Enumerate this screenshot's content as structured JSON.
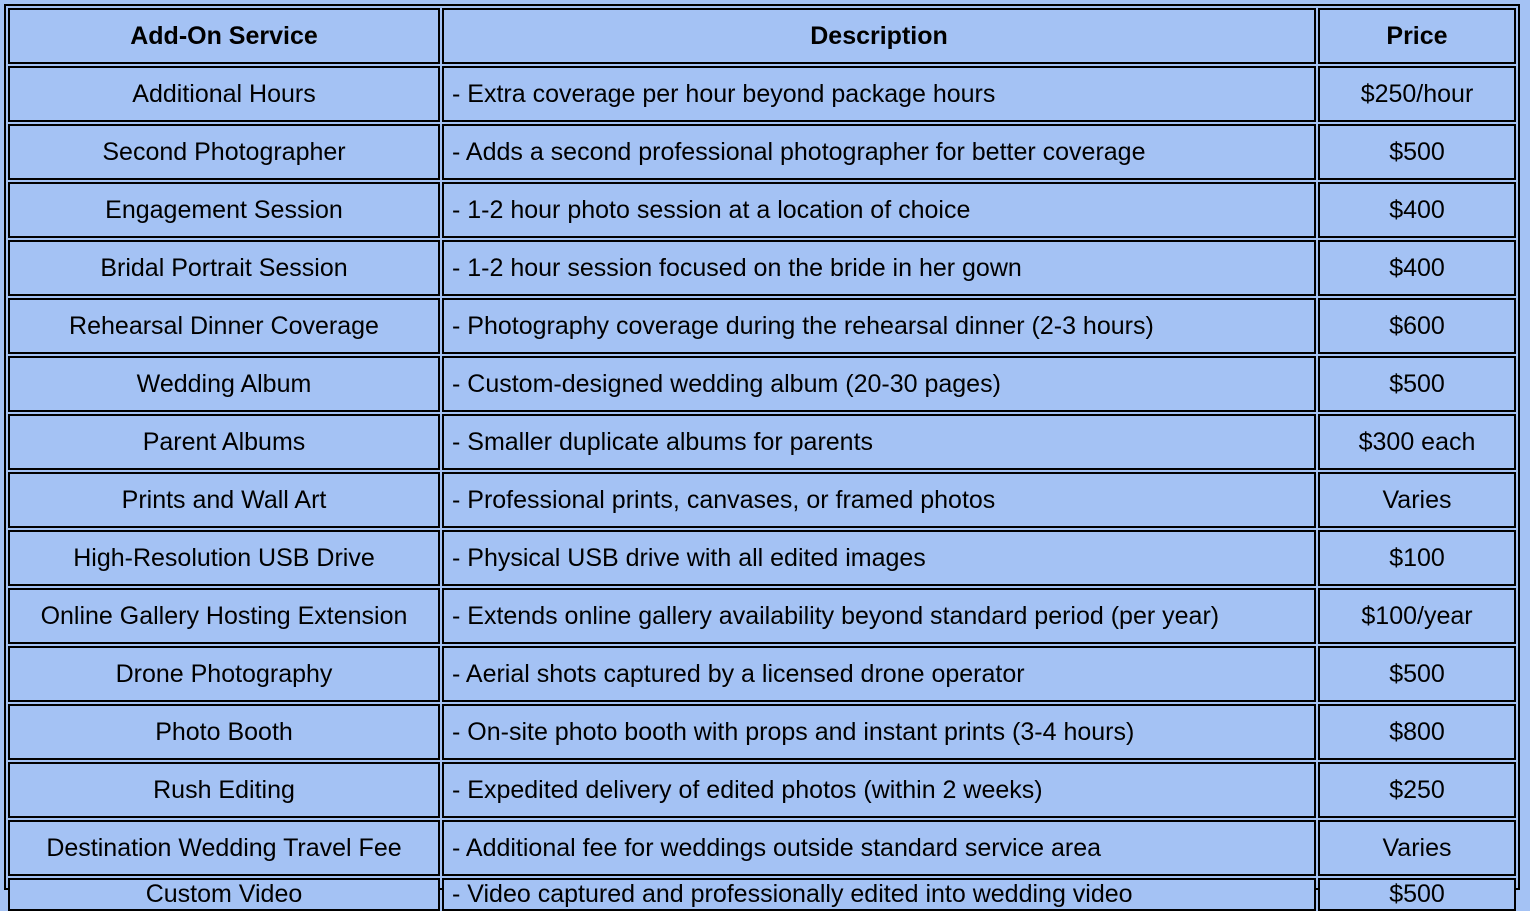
{
  "headers": {
    "service": "Add-On Service",
    "description": "Description",
    "price": "Price"
  },
  "rows": [
    {
      "service": "Additional Hours",
      "description": "- Extra coverage per hour beyond package hours",
      "price": "$250/hour"
    },
    {
      "service": "Second Photographer",
      "description": "- Adds a second professional photographer for better coverage",
      "price": "$500"
    },
    {
      "service": "Engagement Session",
      "description": "- 1-2 hour photo session at a location of choice",
      "price": "$400"
    },
    {
      "service": "Bridal Portrait Session",
      "description": "- 1-2 hour session focused on the bride in her gown",
      "price": "$400"
    },
    {
      "service": "Rehearsal Dinner Coverage",
      "description": "- Photography coverage during the rehearsal dinner (2-3 hours)",
      "price": "$600"
    },
    {
      "service": "Wedding Album",
      "description": "- Custom-designed wedding album (20-30 pages)",
      "price": "$500"
    },
    {
      "service": "Parent Albums",
      "description": "- Smaller duplicate albums for parents",
      "price": "$300 each"
    },
    {
      "service": "Prints and Wall Art",
      "description": "- Professional prints, canvases, or framed photos",
      "price": "Varies"
    },
    {
      "service": "High-Resolution USB Drive",
      "description": "- Physical USB drive with all edited images",
      "price": "$100"
    },
    {
      "service": "Online Gallery Hosting Extension",
      "description": "- Extends online gallery availability beyond standard period (per year)",
      "price": "$100/year"
    },
    {
      "service": "Drone Photography",
      "description": "- Aerial shots captured by a licensed drone operator",
      "price": "$500"
    },
    {
      "service": "Photo Booth",
      "description": "- On-site photo booth with props and instant prints (3-4 hours)",
      "price": "$800"
    },
    {
      "service": "Rush Editing",
      "description": "- Expedited delivery of edited photos (within 2 weeks)",
      "price": "$250"
    },
    {
      "service": "Destination Wedding Travel Fee",
      "description": "- Additional fee for weddings outside standard service area",
      "price": "Varies"
    },
    {
      "service": "Custom Video",
      "description": "- Video captured and professionally edited into wedding video",
      "price": "$500"
    }
  ],
  "colors": {
    "cell_background": "#a4c2f4",
    "border": "#000000"
  }
}
